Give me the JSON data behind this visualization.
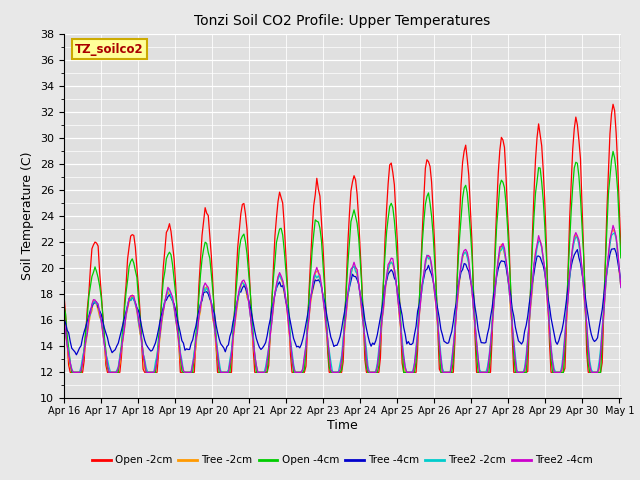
{
  "title": "Tonzi Soil CO2 Profile: Upper Temperatures",
  "xlabel": "Time",
  "ylabel": "Soil Temperature (C)",
  "ylim": [
    10,
    38
  ],
  "yticks": [
    10,
    12,
    14,
    16,
    18,
    20,
    22,
    24,
    26,
    28,
    30,
    32,
    34,
    36,
    38
  ],
  "background_color": "#e8e8e8",
  "plot_bg_color": "#e0e0e0",
  "series": [
    {
      "label": "Open -2cm",
      "color": "#ff0000"
    },
    {
      "label": "Tree -2cm",
      "color": "#ff9900"
    },
    {
      "label": "Open -4cm",
      "color": "#00cc00"
    },
    {
      "label": "Tree -4cm",
      "color": "#0000cc"
    },
    {
      "label": "Tree2 -2cm",
      "color": "#00cccc"
    },
    {
      "label": "Tree2 -4cm",
      "color": "#cc00cc"
    }
  ],
  "x_tick_labels": [
    "Apr 16",
    "Apr 17",
    "Apr 18",
    "Apr 19",
    "Apr 20",
    "Apr 21",
    "Apr 22",
    "Apr 23",
    "Apr 24",
    "Apr 25",
    "Apr 26",
    "Apr 27",
    "Apr 28",
    "Apr 29",
    "Apr 30",
    "May 1"
  ],
  "annotation_text": "TZ_soilco2",
  "annotation_color": "#aa0000",
  "annotation_bg": "#ffff99",
  "annotation_border": "#ccaa00"
}
